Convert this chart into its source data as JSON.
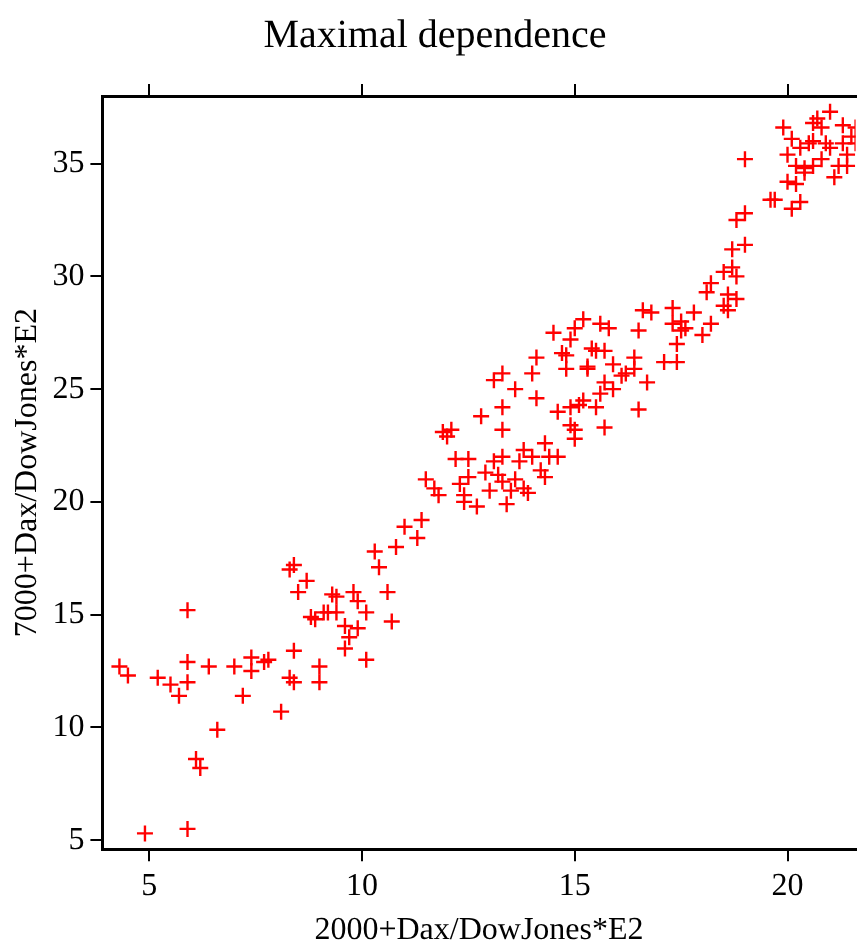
{
  "chart_data": {
    "type": "scatter",
    "title": "Maximal dependence",
    "xlabel": "2000+Dax/DowJones*E2",
    "ylabel": "7000+Dax/DowJones*E2",
    "marker": "cross",
    "grid": false,
    "legend": false,
    "xlim": [
      3.9,
      21.6
    ],
    "ylim": [
      4.6,
      38
    ],
    "xticks": [
      5,
      10,
      15,
      20
    ],
    "yticks": [
      5,
      10,
      15,
      20,
      25,
      30,
      35
    ],
    "series": [
      {
        "color": "#ff0000",
        "x": [
          4.3,
          4.5,
          4.9,
          5.2,
          5.5,
          5.7,
          5.9,
          5.9,
          5.9,
          5.9,
          6.1,
          6.2,
          6.4,
          6.6,
          7,
          7.2,
          7.4,
          7.4,
          7.7,
          7.8,
          8.1,
          8.3,
          8.4,
          8.3,
          8.4,
          8.4,
          8.5,
          8.7,
          8.8,
          8.9,
          9,
          9,
          9.1,
          9.2,
          9.3,
          9.4,
          9.4,
          9.6,
          9.6,
          9.7,
          9.8,
          9.9,
          9.9,
          10.1,
          10.1,
          10.3,
          10.4,
          10.6,
          10.7,
          10.8,
          11,
          11.3,
          11.4,
          11.5,
          11.7,
          11.8,
          11.9,
          12.1,
          12,
          12.2,
          12.5,
          12.3,
          12.4,
          12.4,
          12.5,
          12.7,
          12.8,
          12.9,
          13,
          13.1,
          13.1,
          13.2,
          13.3,
          13.3,
          13.3,
          13.3,
          13.3,
          13.4,
          13.5,
          13.6,
          13.6,
          13.7,
          13.8,
          13.8,
          13.9,
          14,
          14,
          14.1,
          14.1,
          14.2,
          14.3,
          14.3,
          14.4,
          14.5,
          14.6,
          14.6,
          14.7,
          14.8,
          14.8,
          14.9,
          14.9,
          14.9,
          15,
          15,
          15,
          15.1,
          15.2,
          15.2,
          15.3,
          15.3,
          15.4,
          15.5,
          15.5,
          15.6,
          15.6,
          15.7,
          15.7,
          15.7,
          15.8,
          15.9,
          15.9,
          16.1,
          16.2,
          16.4,
          16.4,
          16.5,
          16.5,
          16.6,
          16.7,
          16.8,
          17.1,
          17.3,
          17.3,
          17.4,
          17.4,
          17.5,
          17.5,
          17.6,
          17.8,
          18,
          18.1,
          18.2,
          18.2,
          18.5,
          18.5,
          18.6,
          18.6,
          18.7,
          18.7,
          18.8,
          18.8,
          18.8,
          19,
          19,
          19,
          19.6,
          19.7,
          19.9,
          20,
          20,
          20.1,
          20.1,
          20.2,
          20.2,
          20.3,
          20.3,
          20.4,
          20.4,
          20.5,
          20.6,
          20.6,
          20.6,
          20.7,
          20.8,
          20.8,
          20.9,
          21,
          21,
          21.1,
          21.2,
          21.3,
          21.3,
          21.4,
          21.4,
          21.5,
          21.6,
          21.6
        ],
        "values": [
          12.7,
          12.3,
          5.3,
          12.2,
          11.9,
          11.4,
          15.2,
          12.9,
          12,
          5.5,
          8.6,
          8.2,
          12.7,
          9.9,
          12.7,
          11.4,
          13.1,
          12.5,
          12.9,
          13,
          10.7,
          17,
          17.2,
          12.2,
          12,
          13.4,
          16,
          16.5,
          14.9,
          14.8,
          12.7,
          12,
          15.1,
          15.1,
          15.9,
          15.8,
          15.1,
          14.5,
          13.5,
          14,
          16,
          14.4,
          15.6,
          15.1,
          13,
          17.8,
          17.1,
          16,
          14.7,
          18,
          18.9,
          18.4,
          19.2,
          21,
          20.6,
          20.3,
          23.1,
          23.2,
          22.9,
          21.9,
          21.9,
          20.8,
          20,
          20.3,
          21.1,
          19.8,
          23.8,
          21.3,
          20.5,
          25.4,
          21.8,
          21.2,
          24.2,
          25.7,
          23.2,
          22,
          20.9,
          19.9,
          20.5,
          25,
          21,
          21.8,
          22.3,
          20.6,
          20.4,
          25.7,
          22,
          24.6,
          26.4,
          21.4,
          22.6,
          21.1,
          22,
          27.5,
          22,
          24,
          26.6,
          26.5,
          25.9,
          24.2,
          27.2,
          23.4,
          23.2,
          27.7,
          22.8,
          24.3,
          28.1,
          24.5,
          25.9,
          26,
          26.8,
          26.7,
          24.2,
          27.9,
          24.8,
          23.3,
          25.3,
          26.7,
          27.7,
          26.1,
          25,
          25.6,
          25.7,
          25.9,
          26.4,
          24.1,
          27.6,
          28.5,
          25.3,
          28.4,
          26.2,
          27.9,
          28.6,
          26.2,
          27,
          28,
          27.6,
          27.7,
          28.4,
          27.4,
          29.3,
          27.9,
          29.7,
          28.7,
          30.2,
          28.5,
          29.2,
          30.4,
          31.2,
          29,
          32.5,
          30,
          31.4,
          32.8,
          35.2,
          33.4,
          33.4,
          36.6,
          35.4,
          34.2,
          36.1,
          33,
          34.1,
          34.9,
          35.7,
          33.3,
          34.8,
          34.6,
          35.9,
          36.8,
          34.9,
          36,
          37,
          35.2,
          36.6,
          35.9,
          37.3,
          35.7,
          34.4,
          34.9,
          35.9,
          36.7,
          34.9,
          35.4,
          36.2,
          35.9,
          36.6
        ]
      }
    ]
  }
}
